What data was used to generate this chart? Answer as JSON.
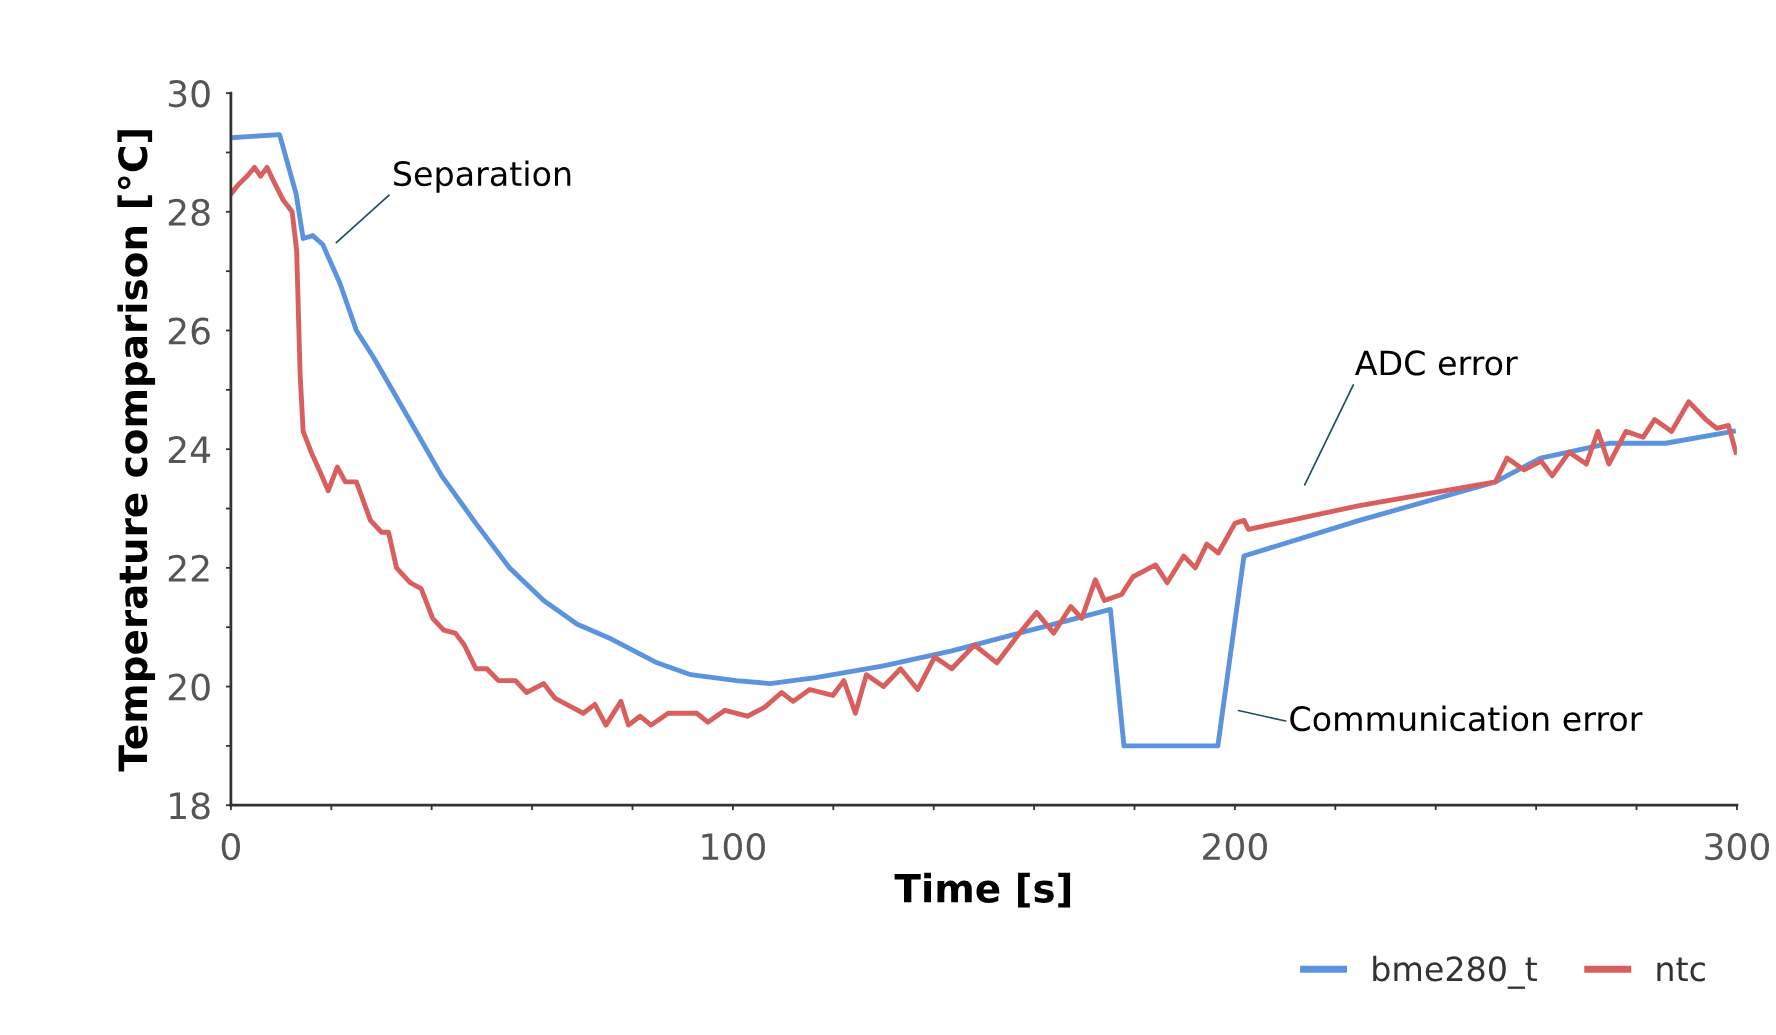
{
  "chart_data": {
    "type": "line",
    "xlabel": "Time [s]",
    "ylabel": "Temperature comparison [°C]",
    "xlim": [
      0,
      300
    ],
    "ylim": [
      18,
      30
    ],
    "xticks": [
      0,
      {
        "value": 20,
        "label": null
      },
      {
        "value": 40,
        "label": null
      },
      {
        "value": 60,
        "label": null
      },
      {
        "value": 80,
        "label": null
      },
      100,
      {
        "value": 120,
        "label": null
      },
      {
        "value": 140,
        "label": null
      },
      {
        "value": 160,
        "label": null
      },
      {
        "value": 180,
        "label": null
      },
      200,
      {
        "value": 220,
        "label": null
      },
      {
        "value": 240,
        "label": null
      },
      {
        "value": 260,
        "label": null
      },
      {
        "value": 280,
        "label": null
      },
      300
    ],
    "yticks": [
      18,
      {
        "value": 19,
        "label": null
      },
      20,
      {
        "value": 21,
        "label": null
      },
      22,
      {
        "value": 23,
        "label": null
      },
      24,
      {
        "value": 25,
        "label": null
      },
      26,
      {
        "value": 27,
        "label": null
      },
      28,
      {
        "value": 29,
        "label": null
      },
      30
    ],
    "grid": false,
    "legend": "bottom right",
    "marker": "none",
    "line_style": "solid",
    "series": [
      {
        "name": "bme280_t",
        "color": "#5b93de",
        "x": [
          0,
          9.7,
          13,
          14.4,
          16.3,
          18.3,
          21.7,
          25,
          28.4,
          35.2,
          42,
          48.8,
          55.5,
          62.3,
          69,
          75.8,
          84.9,
          91.6,
          100.7,
          107.4,
          116.5,
          130,
          143.6,
          157,
          168.4,
          175.2,
          177.9,
          196.6,
          201.8,
          224.8,
          251.9,
          260.9,
          274.5,
          285.8,
          299.3
        ],
        "values": [
          29.25,
          29.3,
          28.3,
          27.55,
          27.6,
          27.45,
          26.8,
          26.0,
          25.55,
          24.55,
          23.55,
          22.75,
          22.0,
          21.45,
          21.05,
          20.8,
          20.4,
          20.2,
          20.1,
          20.05,
          20.15,
          20.35,
          20.6,
          20.9,
          21.15,
          21.3,
          19.0,
          19.0,
          22.2,
          22.8,
          23.45,
          23.85,
          24.1,
          24.1,
          24.3
        ]
      },
      {
        "name": "ntc",
        "color": "#d95f5f",
        "x": [
          0,
          1.4,
          3.2,
          4.7,
          5.9,
          7.2,
          8.6,
          10.4,
          12.2,
          13.1,
          13.8,
          14.4,
          16,
          17.6,
          19.4,
          21.2,
          22.8,
          25,
          27.8,
          30,
          31.4,
          33,
          35.7,
          37.9,
          40.2,
          42.4,
          44.7,
          46.5,
          48.8,
          51,
          53.3,
          56.7,
          58.9,
          62.3,
          64.6,
          68,
          70.2,
          72.5,
          74.7,
          77.7,
          79.2,
          81.5,
          83.7,
          87.1,
          90.5,
          92.8,
          95,
          98.4,
          102.9,
          106.3,
          109.7,
          112,
          115.3,
          119.9,
          122.1,
          124.4,
          126.6,
          130,
          133.4,
          136.8,
          140.2,
          143.6,
          148.1,
          152.6,
          157.1,
          160.5,
          163.9,
          167.3,
          169.5,
          172.2,
          174,
          177.4,
          179.7,
          184.2,
          186.5,
          189.8,
          192.1,
          194.4,
          196.7,
          200,
          201.8,
          202.7,
          224.8,
          251.9,
          254.2,
          257.6,
          261,
          263.2,
          266.6,
          270,
          272.3,
          274.5,
          277.9,
          281.3,
          283.6,
          287,
          290.4,
          293.8,
          296,
          298.3,
          299.8
        ],
        "values": [
          28.3,
          28.45,
          28.6,
          28.75,
          28.6,
          28.75,
          28.5,
          28.2,
          28.0,
          27.35,
          25.25,
          24.3,
          23.95,
          23.65,
          23.3,
          23.7,
          23.45,
          23.45,
          22.8,
          22.6,
          22.6,
          22.0,
          21.75,
          21.65,
          21.15,
          20.95,
          20.9,
          20.7,
          20.3,
          20.3,
          20.1,
          20.1,
          19.9,
          20.05,
          19.8,
          19.65,
          19.55,
          19.7,
          19.35,
          19.75,
          19.35,
          19.5,
          19.35,
          19.55,
          19.55,
          19.55,
          19.4,
          19.6,
          19.5,
          19.65,
          19.9,
          19.75,
          19.95,
          19.85,
          20.1,
          19.55,
          20.2,
          20.0,
          20.3,
          19.95,
          20.5,
          20.3,
          20.7,
          20.4,
          20.9,
          21.25,
          20.9,
          21.35,
          21.15,
          21.8,
          21.45,
          21.55,
          21.85,
          22.05,
          21.75,
          22.2,
          22.0,
          22.4,
          22.25,
          22.75,
          22.8,
          22.65,
          23.05,
          23.45,
          23.85,
          23.65,
          23.8,
          23.55,
          23.95,
          23.75,
          24.3,
          23.75,
          24.3,
          24.2,
          24.5,
          24.3,
          24.8,
          24.5,
          24.35,
          24.4,
          23.95
        ]
      }
    ],
    "annotations": [
      "Separation",
      "ADC error",
      "Communication error"
    ]
  }
}
